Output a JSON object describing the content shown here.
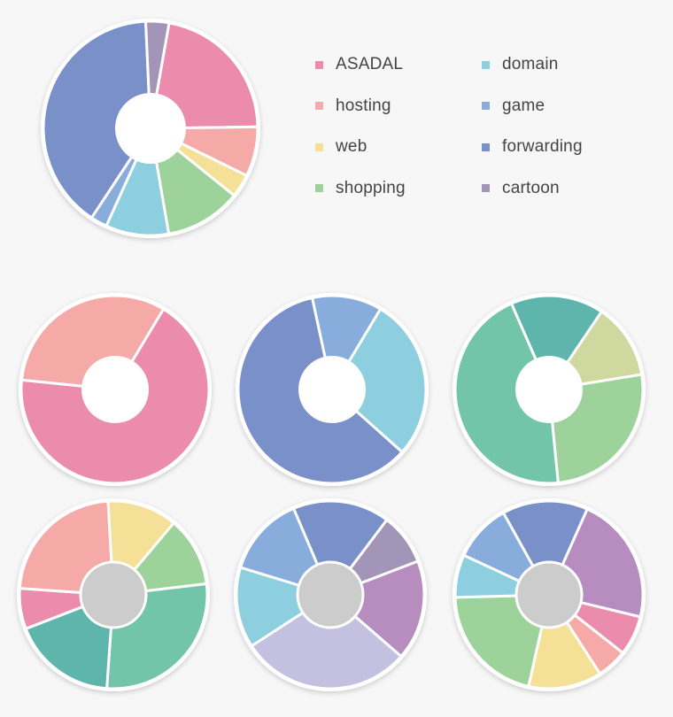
{
  "colors": {
    "ASADAL": "#ec8cad",
    "hosting": "#f5aaa8",
    "web": "#f4e096",
    "shopping": "#9dd39a",
    "domain": "#8ecfdf",
    "game": "#88addc",
    "forwarding": "#7990c8",
    "cartoon": "#a395b8",
    "teal": "#5db5ab",
    "seagreen": "#72c5a9",
    "khaki": "#cfd89e",
    "mauve": "#b78cbf",
    "lavender": "#c4c0e0",
    "hole_gray": "#cccccc",
    "hole_white": "#ffffff"
  },
  "legend": [
    {
      "label": "ASADAL",
      "color": "ASADAL"
    },
    {
      "label": "hosting",
      "color": "hosting"
    },
    {
      "label": "web",
      "color": "web"
    },
    {
      "label": "shopping",
      "color": "shopping"
    },
    {
      "label": "domain",
      "color": "domain"
    },
    {
      "label": "game",
      "color": "game"
    },
    {
      "label": "forwarding",
      "color": "forwarding"
    },
    {
      "label": "cartoon",
      "color": "cartoon"
    }
  ],
  "chart_data": [
    {
      "type": "pie",
      "variant": "donut-white-hole",
      "legend": "right",
      "slices": [
        {
          "category": "ASADAL",
          "value": 22,
          "color": "ASADAL"
        },
        {
          "category": "hosting",
          "value": 7.5,
          "color": "hosting"
        },
        {
          "category": "web",
          "value": 3.5,
          "color": "web"
        },
        {
          "category": "shopping",
          "value": 11.5,
          "color": "shopping"
        },
        {
          "category": "domain",
          "value": 9.5,
          "color": "domain"
        },
        {
          "category": "game",
          "value": 2.5,
          "color": "game"
        },
        {
          "category": "forwarding",
          "value": 40,
          "color": "forwarding"
        },
        {
          "category": "cartoon",
          "value": 3.5,
          "color": "cartoon"
        }
      ]
    },
    {
      "type": "pie",
      "variant": "donut-white-hole",
      "slices": [
        {
          "category": "ASADAL",
          "value": 68,
          "color": "ASADAL"
        },
        {
          "category": "hosting",
          "value": 32,
          "color": "hosting"
        }
      ]
    },
    {
      "type": "pie",
      "variant": "donut-white-hole",
      "slices": [
        {
          "category": "domain",
          "value": 28,
          "color": "domain"
        },
        {
          "category": "forwarding",
          "value": 60,
          "color": "forwarding"
        },
        {
          "category": "game",
          "value": 12,
          "color": "game"
        }
      ]
    },
    {
      "type": "pie",
      "variant": "donut-white-hole",
      "slices": [
        {
          "value": 13,
          "color": "khaki"
        },
        {
          "value": 26,
          "color": "shopping"
        },
        {
          "value": 45,
          "color": "seagreen"
        },
        {
          "value": 16,
          "color": "teal"
        }
      ]
    },
    {
      "type": "pie",
      "variant": "donut-gray-hole",
      "slices": [
        {
          "value": 12,
          "color": "shopping"
        },
        {
          "value": 28,
          "color": "seagreen"
        },
        {
          "value": 18,
          "color": "teal"
        },
        {
          "value": 7,
          "color": "ASADAL"
        },
        {
          "value": 23,
          "color": "hosting"
        },
        {
          "value": 12,
          "color": "web"
        }
      ]
    },
    {
      "type": "pie",
      "variant": "donut-gray-hole",
      "slices": [
        {
          "value": 8,
          "color": "cartoon"
        },
        {
          "value": 15.5,
          "color": "mauve"
        },
        {
          "value": 26.5,
          "color": "lavender"
        },
        {
          "value": 12.5,
          "color": "domain"
        },
        {
          "value": 12.5,
          "color": "game"
        },
        {
          "value": 15,
          "color": "forwarding"
        }
      ]
    },
    {
      "type": "pie",
      "variant": "donut-gray-hole",
      "slices": [
        {
          "value": 21,
          "color": "mauve"
        },
        {
          "value": 6.5,
          "color": "ASADAL"
        },
        {
          "value": 5,
          "color": "hosting"
        },
        {
          "value": 12,
          "color": "web"
        },
        {
          "value": 20,
          "color": "shopping"
        },
        {
          "value": 7,
          "color": "domain"
        },
        {
          "value": 9.5,
          "color": "game"
        },
        {
          "value": 14,
          "color": "forwarding"
        }
      ]
    }
  ]
}
